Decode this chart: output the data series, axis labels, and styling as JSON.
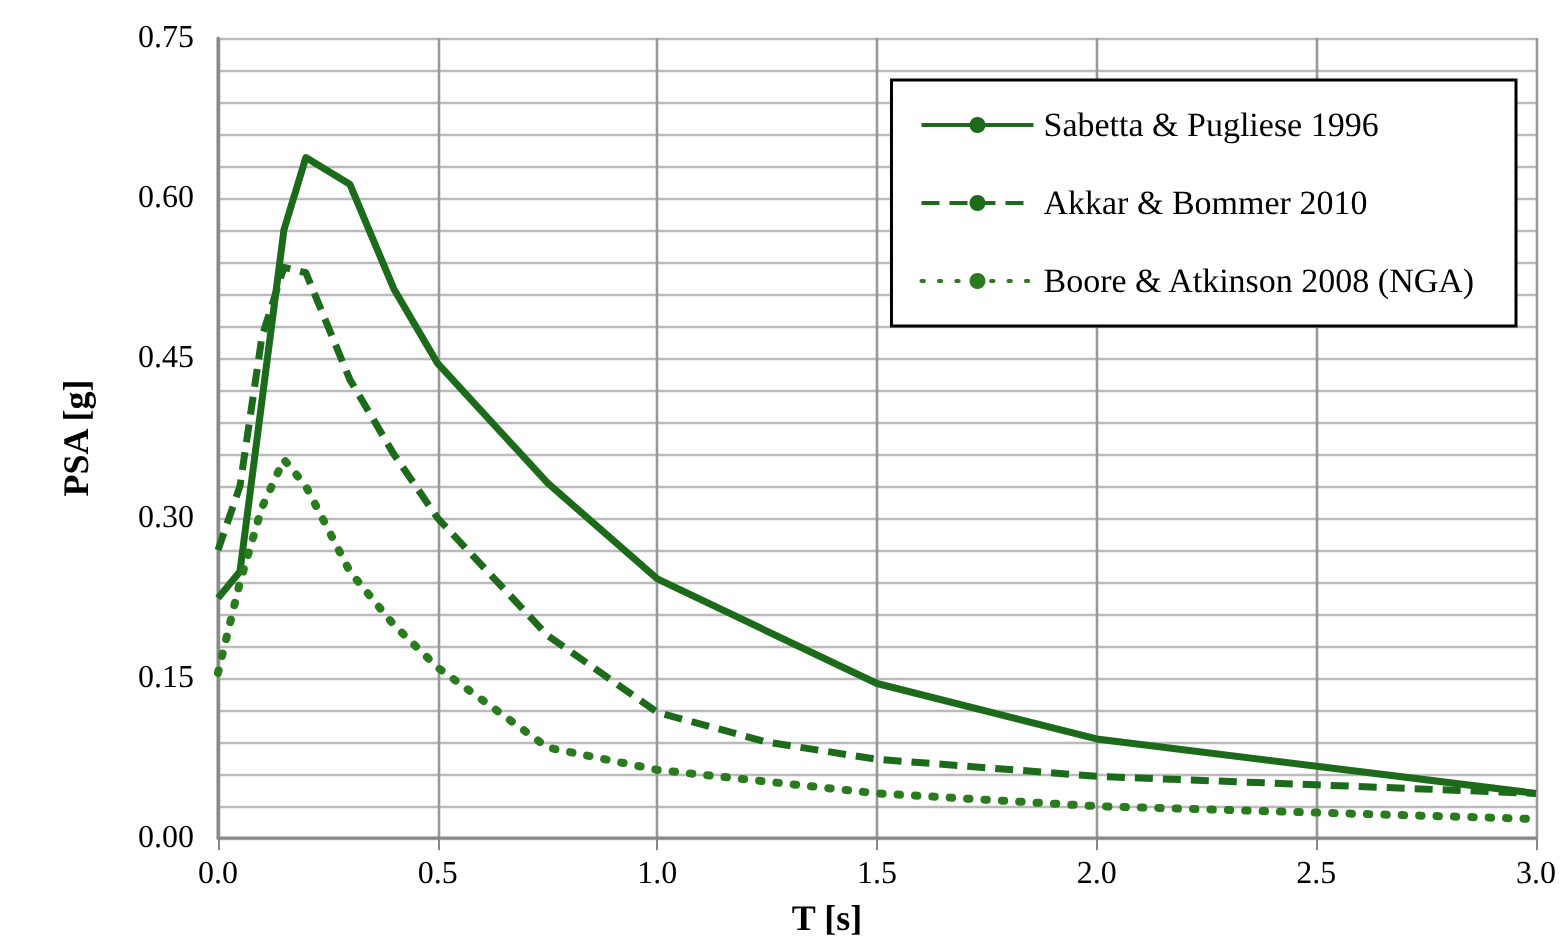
{
  "chart_data": {
    "type": "line",
    "xlabel": "T [s]",
    "ylabel": "PSA [g]",
    "xlim": [
      0,
      3
    ],
    "xticks": [
      {
        "value": 0,
        "label": "0.0"
      },
      {
        "value": 0.5,
        "label": "0.5"
      },
      {
        "value": 1,
        "label": "1.0"
      },
      {
        "value": 1.5,
        "label": "1.5"
      },
      {
        "value": 2,
        "label": "2.0"
      },
      {
        "value": 2.5,
        "label": "2.5"
      },
      {
        "value": 3,
        "label": "3.0"
      }
    ],
    "ylim": [
      0,
      0.75
    ],
    "yticks": [
      {
        "value": 0,
        "label": "0.00"
      },
      {
        "value": 0.03,
        "label": null
      },
      {
        "value": 0.06,
        "label": null
      },
      {
        "value": 0.09,
        "label": null
      },
      {
        "value": 0.12,
        "label": null
      },
      {
        "value": 0.15,
        "label": "0.15"
      },
      {
        "value": 0.18,
        "label": null
      },
      {
        "value": 0.21,
        "label": null
      },
      {
        "value": 0.24,
        "label": null
      },
      {
        "value": 0.27,
        "label": null
      },
      {
        "value": 0.3,
        "label": "0.30"
      },
      {
        "value": 0.33,
        "label": null
      },
      {
        "value": 0.36,
        "label": null
      },
      {
        "value": 0.39,
        "label": null
      },
      {
        "value": 0.42,
        "label": null
      },
      {
        "value": 0.45,
        "label": "0.45"
      },
      {
        "value": 0.48,
        "label": null
      },
      {
        "value": 0.51,
        "label": null
      },
      {
        "value": 0.54,
        "label": null
      },
      {
        "value": 0.57,
        "label": null
      },
      {
        "value": 0.6,
        "label": "0.60"
      },
      {
        "value": 0.63,
        "label": null
      },
      {
        "value": 0.66,
        "label": null
      },
      {
        "value": 0.69,
        "label": null
      },
      {
        "value": 0.72,
        "label": null
      },
      {
        "value": 0.75,
        "label": "0.75"
      }
    ],
    "grid": true,
    "legend": "top right",
    "marker": "none",
    "series": [
      {
        "name": "Sabetta & Pugliese 1996",
        "color": "#1b6b1b",
        "line_style": "solid",
        "x": [
          0,
          0.05,
          0.15,
          0.2,
          0.3,
          0.4,
          0.5,
          0.75,
          1,
          1.5,
          2,
          3
        ],
        "values": [
          0.225,
          0.25,
          0.57,
          0.638,
          0.613,
          0.515,
          0.445,
          0.333,
          0.243,
          0.145,
          0.093,
          0.042
        ]
      },
      {
        "name": "Akkar & Bommer 2010",
        "color": "#1b6b1b",
        "line_style": "dashed",
        "x": [
          0,
          0.05,
          0.1,
          0.15,
          0.2,
          0.3,
          0.4,
          0.5,
          0.75,
          1,
          1.25,
          1.5,
          2,
          3
        ],
        "values": [
          0.27,
          0.33,
          0.47,
          0.535,
          0.53,
          0.43,
          0.36,
          0.3,
          0.19,
          0.118,
          0.09,
          0.074,
          0.058,
          0.042
        ]
      },
      {
        "name": "Boore & Atkinson 2008 (NGA)",
        "color": "#2a7a1e",
        "line_style": "dotted",
        "x": [
          0,
          0.05,
          0.1,
          0.15,
          0.2,
          0.3,
          0.4,
          0.5,
          0.75,
          1,
          1.5,
          2,
          3
        ],
        "values": [
          0.155,
          0.24,
          0.31,
          0.355,
          0.33,
          0.25,
          0.2,
          0.16,
          0.085,
          0.064,
          0.042,
          0.03,
          0.018
        ]
      }
    ]
  }
}
